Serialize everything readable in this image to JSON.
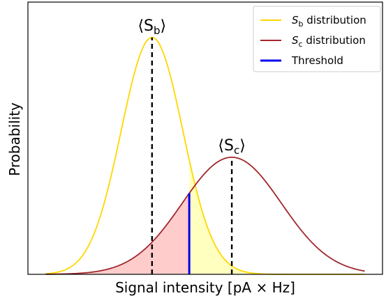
{
  "chart_data": {
    "type": "line",
    "xlabel": "Signal intensity [pA × Hz]",
    "ylabel": "Probability",
    "xlim": [
      0,
      10
    ],
    "ylim": [
      0,
      1.0
    ],
    "grid": false,
    "legend_placement": "top-right",
    "series": [
      {
        "name": "S_b distribution",
        "mu": 3.5,
        "sigma": 0.87,
        "peak": 0.87,
        "color": "#FFD700"
      },
      {
        "name": "S_c distribution",
        "mu": 5.75,
        "sigma": 1.4,
        "peak": 0.43,
        "color": "#A0282D"
      },
      {
        "name": "Threshold",
        "x": 4.55,
        "color": "#0000EE"
      }
    ],
    "annotations": [
      {
        "text_base": "⟨S",
        "text_sub": "b",
        "text_end": "⟩",
        "x": 3.5,
        "color": "#FFD700"
      },
      {
        "text_base": "⟨S",
        "text_sub": "c",
        "text_end": "⟩",
        "x": 5.75,
        "color": "#A0282D"
      }
    ],
    "legend": [
      {
        "base": "S",
        "sub": "b",
        "rest": " distribution",
        "color": "#FFD700"
      },
      {
        "base": "S",
        "sub": "c",
        "rest": " distribution",
        "color": "#A0282D"
      },
      {
        "label": "Threshold",
        "color": "#0000EE"
      }
    ]
  }
}
